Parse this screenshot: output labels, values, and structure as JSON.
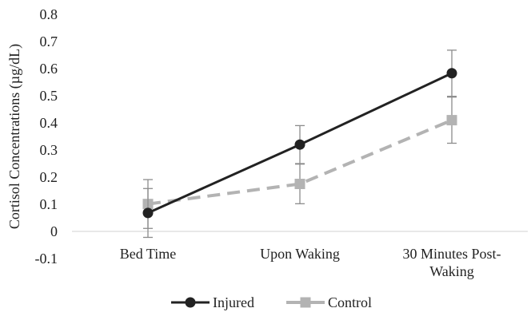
{
  "chart_data": {
    "type": "line",
    "title": "",
    "xlabel": "",
    "ylabel": "Cortisol Concentrations (µg/dL)",
    "categories": [
      "Bed Time",
      "Upon Waking",
      "30 Minutes Post-Waking"
    ],
    "category_label_lines": [
      [
        "Bed Time"
      ],
      [
        "Upon Waking"
      ],
      [
        "30 Minutes Post-",
        "Waking"
      ]
    ],
    "ylim": [
      -0.1,
      0.8
    ],
    "yticks": [
      -0.1,
      0,
      0.1,
      0.2,
      0.3,
      0.4,
      0.5,
      0.6,
      0.7,
      0.8
    ],
    "ytick_labels": [
      "-0.1",
      "0",
      "0.1",
      "0.2",
      "0.3",
      "0.4",
      "0.5",
      "0.6",
      "0.7",
      "0.8"
    ],
    "grid": false,
    "legend_position": "bottom",
    "series": [
      {
        "name": "Injured",
        "values": [
          0.068,
          0.32,
          0.583
        ],
        "error": [
          0.09,
          0.07,
          0.085
        ],
        "color": "#222222",
        "marker": "circle",
        "dashed": false
      },
      {
        "name": "Control",
        "values": [
          0.101,
          0.175,
          0.41
        ],
        "error": [
          0.09,
          0.073,
          0.085
        ],
        "color": "#b3b3b3",
        "marker": "square",
        "dashed": true
      }
    ]
  }
}
